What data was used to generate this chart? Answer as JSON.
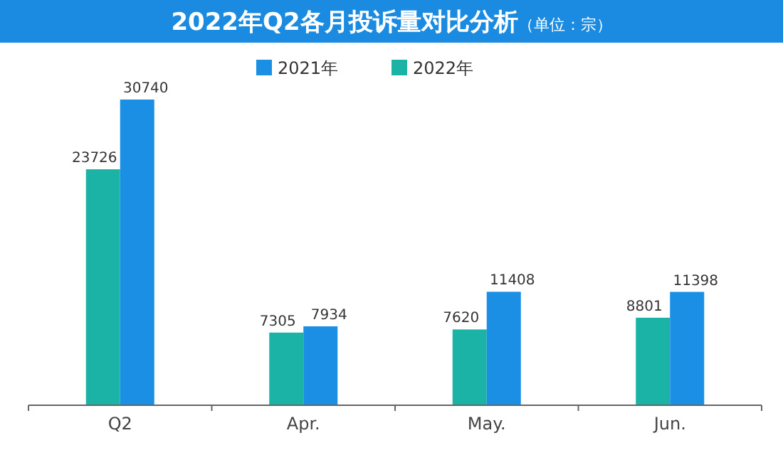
{
  "chart_data": {
    "type": "bar",
    "title": "2022年Q2各月投诉量对比分析",
    "subtitle": "（单位：宗）",
    "categories": [
      "Q2",
      "Apr.",
      "May.",
      "Jun."
    ],
    "series": [
      {
        "name": "2022年",
        "color": "#1ab3a6",
        "values": [
          23726,
          7305,
          7620,
          8801
        ]
      },
      {
        "name": "2021年",
        "color": "#1a8fe3",
        "values": [
          30740,
          7934,
          11408,
          11398
        ]
      }
    ],
    "data_labels": true,
    "legend": "top"
  }
}
